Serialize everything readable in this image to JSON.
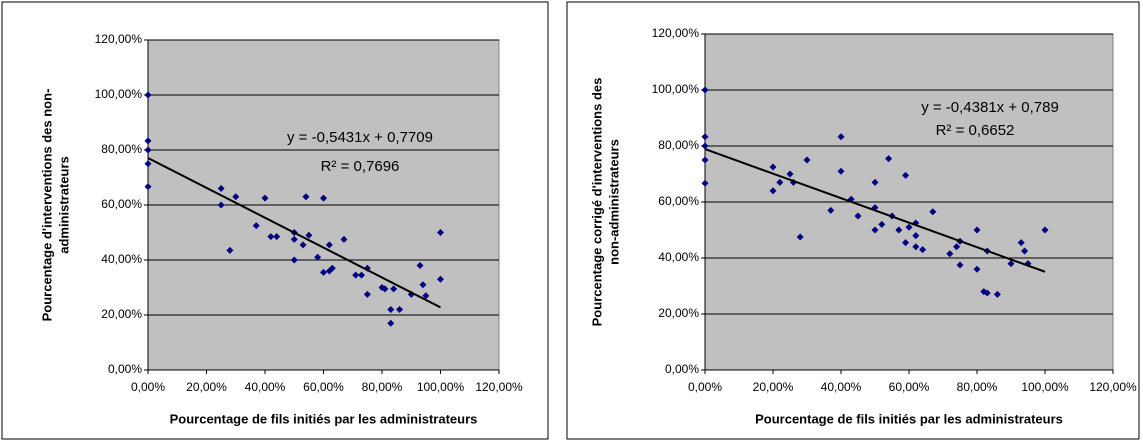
{
  "chart_data": [
    {
      "type": "scatter",
      "xlabel": "Pourcentage de fils initiés par les administrateurs",
      "ylabel": [
        "Pourcentage d'interventions des non-",
        "administrateurs"
      ],
      "equation": "y = -0,5431x + 0,7709",
      "r_squared": "R² = 0,7696",
      "xlim": [
        0,
        120
      ],
      "ylim": [
        0,
        120
      ],
      "xticks": [
        {
          "value": 0,
          "label": "0,00%"
        },
        {
          "value": 20,
          "label": "20,00%"
        },
        {
          "value": 40,
          "label": "40,00%"
        },
        {
          "value": 60,
          "label": "60,00%"
        },
        {
          "value": 80,
          "label": "80,00%"
        },
        {
          "value": 100,
          "label": "100,00%"
        },
        {
          "value": 120,
          "label": "120,00%"
        }
      ],
      "yticks": [
        {
          "value": 0,
          "label": "0,00%"
        },
        {
          "value": 20,
          "label": "20,00%"
        },
        {
          "value": 40,
          "label": "40,00%"
        },
        {
          "value": 60,
          "label": "60,00%"
        },
        {
          "value": 80,
          "label": "80,00%"
        },
        {
          "value": 100,
          "label": "100,00%"
        },
        {
          "value": 120,
          "label": "120,00%"
        }
      ],
      "grid": true,
      "color": "#000080",
      "x": [
        0,
        0,
        0,
        0,
        0,
        25,
        25,
        28,
        30,
        37,
        40,
        42,
        44,
        50,
        50,
        50,
        53,
        54,
        55,
        58,
        60,
        60,
        62,
        62,
        63,
        67,
        71,
        73,
        75,
        75,
        80,
        81,
        83,
        83,
        84,
        86,
        90,
        93,
        94,
        95,
        100,
        100
      ],
      "values": [
        100,
        83.3,
        80,
        75,
        66.7,
        66,
        60,
        43.5,
        63,
        52.5,
        62.5,
        48.5,
        48.5,
        50,
        47.5,
        40,
        45.5,
        63,
        49,
        41,
        62.5,
        35.5,
        36,
        45.5,
        37,
        47.5,
        34.5,
        34.5,
        27.5,
        37,
        30,
        29.5,
        17,
        22,
        29.5,
        22,
        27.5,
        38,
        31,
        27,
        50,
        33
      ],
      "trendline": {
        "x": [
          0,
          100
        ],
        "values": [
          77.09,
          22.78
        ]
      }
    },
    {
      "type": "scatter",
      "xlabel": "Pourcentage de fils initiés par les administrateurs",
      "ylabel": [
        "Pourcentage corrigé d'interventions des",
        "non-administrateurs"
      ],
      "equation": "y = -0,4381x + 0,789",
      "r_squared": "R² = 0,6652",
      "xlim": [
        0,
        120
      ],
      "ylim": [
        0,
        120
      ],
      "xticks": [
        {
          "value": 0,
          "label": "0,00%"
        },
        {
          "value": 20,
          "label": "20,00%"
        },
        {
          "value": 40,
          "label": "40,00%"
        },
        {
          "value": 60,
          "label": "60,00%"
        },
        {
          "value": 80,
          "label": "80,00%"
        },
        {
          "value": 100,
          "label": "100,00%"
        },
        {
          "value": 120,
          "label": "120,00%"
        }
      ],
      "yticks": [
        {
          "value": 0,
          "label": "0,00%"
        },
        {
          "value": 20,
          "label": "20,00%"
        },
        {
          "value": 40,
          "label": "40,00%"
        },
        {
          "value": 60,
          "label": "60,00%"
        },
        {
          "value": 80,
          "label": "80,00%"
        },
        {
          "value": 100,
          "label": "100,00%"
        },
        {
          "value": 120,
          "label": "120,00%"
        }
      ],
      "grid": true,
      "color": "#000080",
      "x": [
        0,
        0,
        0,
        0,
        0,
        20,
        20,
        22,
        25,
        26,
        28,
        30,
        37,
        40,
        40,
        43,
        45,
        50,
        50,
        50,
        52,
        54,
        55,
        57,
        59,
        59,
        60,
        62,
        62,
        62,
        64,
        67,
        72,
        74,
        75,
        75,
        80,
        80,
        82,
        83,
        83,
        86,
        90,
        93,
        94,
        95,
        100
      ],
      "values": [
        100,
        83.3,
        80,
        75,
        66.7,
        64,
        72.5,
        67,
        70,
        67,
        47.5,
        75,
        57,
        83.3,
        71,
        61,
        55,
        67,
        58,
        50,
        52,
        75.5,
        55,
        50,
        69.5,
        45.5,
        51,
        48,
        44,
        52.5,
        43,
        56.5,
        41.5,
        44,
        46,
        37.5,
        50,
        36,
        28,
        42.5,
        27.5,
        27,
        38,
        45.5,
        42.5,
        38,
        50
      ],
      "trendline": {
        "x": [
          0,
          100
        ],
        "values": [
          78.9,
          35.09
        ]
      }
    }
  ]
}
